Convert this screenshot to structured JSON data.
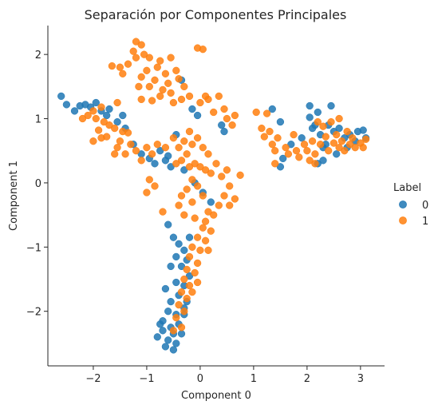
{
  "chart_data": {
    "type": "scatter",
    "title": "Separación por Componentes Principales",
    "xlabel": "Component 0",
    "ylabel": "Component 1",
    "xlim": [
      -2.85,
      3.45
    ],
    "ylim": [
      -2.85,
      2.45
    ],
    "x_ticks": [
      -2,
      -1,
      0,
      1,
      2,
      3
    ],
    "y_ticks": [
      -2,
      -1,
      0,
      1,
      2
    ],
    "x_tick_labels": [
      "−2",
      "−1",
      "0",
      "1",
      "2",
      "3"
    ],
    "y_tick_labels": [
      "−2",
      "−1",
      "0",
      "1",
      "2"
    ],
    "grid": false,
    "legend": {
      "title": "Label",
      "placement": "right"
    },
    "series": [
      {
        "name": "0",
        "color": "#1f77b4",
        "points": [
          [
            -2.6,
            1.35
          ],
          [
            -2.5,
            1.22
          ],
          [
            -2.35,
            1.12
          ],
          [
            -2.25,
            1.2
          ],
          [
            -2.15,
            1.22
          ],
          [
            -2.05,
            1.18
          ],
          [
            -1.95,
            1.25
          ],
          [
            -1.85,
            1.12
          ],
          [
            -1.75,
            1.05
          ],
          [
            -1.7,
            1.15
          ],
          [
            -1.55,
            0.95
          ],
          [
            -1.45,
            1.05
          ],
          [
            -1.4,
            0.85
          ],
          [
            -1.25,
            0.6
          ],
          [
            -1.1,
            0.45
          ],
          [
            -0.95,
            0.38
          ],
          [
            -0.85,
            0.3
          ],
          [
            -0.75,
            0.5
          ],
          [
            -0.6,
            0.42
          ],
          [
            -0.55,
            0.25
          ],
          [
            -0.65,
            0.35
          ],
          [
            -0.35,
            1.6
          ],
          [
            -0.15,
            1.15
          ],
          [
            -0.05,
            1.05
          ],
          [
            -0.45,
            0.75
          ],
          [
            0.4,
            0.9
          ],
          [
            0.45,
            0.8
          ],
          [
            -0.3,
            0.2
          ],
          [
            -0.1,
            0.0
          ],
          [
            0.05,
            -0.15
          ],
          [
            0.2,
            -0.3
          ],
          [
            -0.5,
            -0.85
          ],
          [
            -0.4,
            -0.95
          ],
          [
            -0.3,
            -1.05
          ],
          [
            -0.45,
            -1.15
          ],
          [
            -0.25,
            -1.2
          ],
          [
            -0.35,
            -1.3
          ],
          [
            -0.55,
            -1.3
          ],
          [
            -0.2,
            -1.45
          ],
          [
            -0.45,
            -1.55
          ],
          [
            -0.3,
            -1.6
          ],
          [
            -0.65,
            -1.65
          ],
          [
            -0.4,
            -1.75
          ],
          [
            -0.55,
            -1.85
          ],
          [
            -0.25,
            -1.85
          ],
          [
            -0.6,
            -2.0
          ],
          [
            -0.45,
            -2.05
          ],
          [
            -0.3,
            -2.05
          ],
          [
            -0.7,
            -2.15
          ],
          [
            -0.55,
            -2.25
          ],
          [
            -0.4,
            -2.2
          ],
          [
            -0.7,
            -2.3
          ],
          [
            -0.5,
            -2.35
          ],
          [
            -0.35,
            -2.35
          ],
          [
            -0.6,
            -2.45
          ],
          [
            -0.45,
            -2.5
          ],
          [
            -0.65,
            -2.55
          ],
          [
            -0.5,
            -2.6
          ],
          [
            -0.75,
            -2.2
          ],
          [
            -0.8,
            -2.4
          ],
          [
            -0.3,
            -1.95
          ],
          [
            -0.2,
            -0.85
          ],
          [
            -0.6,
            -0.65
          ],
          [
            1.35,
            1.15
          ],
          [
            1.5,
            0.95
          ],
          [
            1.5,
            0.25
          ],
          [
            1.55,
            0.38
          ],
          [
            1.7,
            0.6
          ],
          [
            1.9,
            0.7
          ],
          [
            2.05,
            1.02
          ],
          [
            2.1,
            0.85
          ],
          [
            2.15,
            0.9
          ],
          [
            2.2,
            1.1
          ],
          [
            2.25,
            0.75
          ],
          [
            2.3,
            0.55
          ],
          [
            2.35,
            0.6
          ],
          [
            2.45,
            1.2
          ],
          [
            2.5,
            0.8
          ],
          [
            2.55,
            0.45
          ],
          [
            2.6,
            0.85
          ],
          [
            2.7,
            0.7
          ],
          [
            2.75,
            0.55
          ],
          [
            2.8,
            0.75
          ],
          [
            2.9,
            0.65
          ],
          [
            2.95,
            0.8
          ],
          [
            3.05,
            0.82
          ],
          [
            3.1,
            0.7
          ],
          [
            2.05,
            1.2
          ],
          [
            2.2,
            0.3
          ],
          [
            2.3,
            0.35
          ],
          [
            2.4,
            0.9
          ]
        ]
      },
      {
        "name": "1",
        "color": "#ff7f0e",
        "points": [
          [
            -1.2,
            2.2
          ],
          [
            -1.1,
            2.15
          ],
          [
            -1.25,
            2.05
          ],
          [
            -1.05,
            2.0
          ],
          [
            -1.2,
            1.95
          ],
          [
            -0.95,
            1.95
          ],
          [
            -1.35,
            1.85
          ],
          [
            -0.75,
            1.9
          ],
          [
            -0.55,
            1.95
          ],
          [
            -0.8,
            1.8
          ],
          [
            -1.0,
            1.75
          ],
          [
            -0.65,
            1.7
          ],
          [
            -1.1,
            1.65
          ],
          [
            -1.65,
            1.82
          ],
          [
            -1.5,
            1.8
          ],
          [
            -1.45,
            1.7
          ],
          [
            -0.45,
            1.75
          ],
          [
            -0.4,
            1.62
          ],
          [
            -0.85,
            1.6
          ],
          [
            -0.6,
            1.55
          ],
          [
            -0.95,
            1.5
          ],
          [
            -1.15,
            1.5
          ],
          [
            -0.7,
            1.45
          ],
          [
            -0.55,
            1.4
          ],
          [
            -0.3,
            1.5
          ],
          [
            -0.75,
            1.35
          ],
          [
            -0.9,
            1.28
          ],
          [
            -1.1,
            1.3
          ],
          [
            -0.5,
            1.25
          ],
          [
            -0.35,
            1.3
          ],
          [
            -0.2,
            1.35
          ],
          [
            -0.05,
            2.1
          ],
          [
            0.05,
            2.08
          ],
          [
            0.0,
            1.25
          ],
          [
            0.1,
            1.35
          ],
          [
            0.15,
            1.3
          ],
          [
            0.25,
            1.1
          ],
          [
            0.35,
            1.35
          ],
          [
            0.45,
            1.15
          ],
          [
            0.5,
            1.0
          ],
          [
            0.6,
            0.9
          ],
          [
            0.65,
            1.05
          ],
          [
            -1.55,
            1.25
          ],
          [
            -1.85,
            1.18
          ],
          [
            -2.0,
            1.12
          ],
          [
            -2.1,
            1.05
          ],
          [
            -2.2,
            1.0
          ],
          [
            -1.95,
            1.0
          ],
          [
            -1.8,
            0.95
          ],
          [
            -1.7,
            0.9
          ],
          [
            -1.6,
            0.85
          ],
          [
            -1.9,
            0.82
          ],
          [
            -1.45,
            0.8
          ],
          [
            -1.35,
            0.78
          ],
          [
            -1.75,
            0.72
          ],
          [
            -1.5,
            0.65
          ],
          [
            -1.3,
            0.6
          ],
          [
            -1.55,
            0.55
          ],
          [
            -2.0,
            0.65
          ],
          [
            -1.85,
            0.7
          ],
          [
            -1.2,
            0.5
          ],
          [
            -1.0,
            0.55
          ],
          [
            -0.9,
            0.45
          ],
          [
            -1.4,
            0.45
          ],
          [
            -1.6,
            0.45
          ],
          [
            -1.1,
            0.35
          ],
          [
            -0.8,
            0.6
          ],
          [
            -0.65,
            0.55
          ],
          [
            -0.5,
            0.7
          ],
          [
            -0.4,
            0.55
          ],
          [
            -0.3,
            0.65
          ],
          [
            -0.2,
            0.8
          ],
          [
            -0.15,
            0.6
          ],
          [
            -0.05,
            0.7
          ],
          [
            0.05,
            0.55
          ],
          [
            0.15,
            0.45
          ],
          [
            -0.25,
            0.45
          ],
          [
            -0.35,
            0.35
          ],
          [
            -0.45,
            0.3
          ],
          [
            -0.2,
            0.25
          ],
          [
            -0.1,
            0.3
          ],
          [
            0.0,
            0.25
          ],
          [
            0.1,
            0.2
          ],
          [
            0.2,
            0.15
          ],
          [
            0.3,
            0.3
          ],
          [
            0.4,
            0.1
          ],
          [
            0.5,
            0.2
          ],
          [
            0.75,
            0.12
          ],
          [
            0.55,
            -0.05
          ],
          [
            0.45,
            -0.2
          ],
          [
            0.35,
            -0.35
          ],
          [
            0.55,
            -0.35
          ],
          [
            0.65,
            -0.25
          ],
          [
            0.25,
            -0.5
          ],
          [
            0.15,
            -0.45
          ],
          [
            -0.15,
            0.05
          ],
          [
            -0.25,
            -0.1
          ],
          [
            -0.35,
            -0.2
          ],
          [
            -0.05,
            -0.05
          ],
          [
            0.05,
            -0.2
          ],
          [
            -0.15,
            -0.3
          ],
          [
            -0.4,
            -0.35
          ],
          [
            -0.3,
            -0.5
          ],
          [
            -0.1,
            -0.55
          ],
          [
            0.1,
            -0.6
          ],
          [
            -0.7,
            -0.45
          ],
          [
            -0.85,
            -0.05
          ],
          [
            -0.95,
            0.05
          ],
          [
            -1.0,
            -0.15
          ],
          [
            0.05,
            -0.7
          ],
          [
            -0.05,
            -0.85
          ],
          [
            0.1,
            -0.9
          ],
          [
            -0.15,
            -1.0
          ],
          [
            0.0,
            -1.05
          ],
          [
            -0.2,
            -1.15
          ],
          [
            -0.05,
            -1.25
          ],
          [
            -0.25,
            -1.35
          ],
          [
            -0.1,
            -1.4
          ],
          [
            -0.3,
            -1.5
          ],
          [
            -0.2,
            -1.6
          ],
          [
            -0.35,
            -1.7
          ],
          [
            -0.25,
            -1.8
          ],
          [
            -0.4,
            -1.9
          ],
          [
            -0.3,
            -2.0
          ],
          [
            -0.45,
            -2.1
          ],
          [
            -0.35,
            -2.25
          ],
          [
            -0.5,
            -2.3
          ],
          [
            -0.15,
            -1.7
          ],
          [
            -0.05,
            -1.55
          ],
          [
            0.15,
            -1.05
          ],
          [
            0.2,
            -0.75
          ],
          [
            1.15,
            0.85
          ],
          [
            1.2,
            0.72
          ],
          [
            1.3,
            0.8
          ],
          [
            1.35,
            0.6
          ],
          [
            1.4,
            0.5
          ],
          [
            1.45,
            0.7
          ],
          [
            1.6,
            0.55
          ],
          [
            1.65,
            0.45
          ],
          [
            1.75,
            0.75
          ],
          [
            1.8,
            0.5
          ],
          [
            1.85,
            0.4
          ],
          [
            1.95,
            0.6
          ],
          [
            2.0,
            0.5
          ],
          [
            2.1,
            0.65
          ],
          [
            2.15,
            0.45
          ],
          [
            2.25,
            0.6
          ],
          [
            2.35,
            0.72
          ],
          [
            2.4,
            0.5
          ],
          [
            2.5,
            0.62
          ],
          [
            2.55,
            0.75
          ],
          [
            2.6,
            0.55
          ],
          [
            2.65,
            0.65
          ],
          [
            2.7,
            0.5
          ],
          [
            2.75,
            0.8
          ],
          [
            2.8,
            0.6
          ],
          [
            2.85,
            0.7
          ],
          [
            2.9,
            0.55
          ],
          [
            3.0,
            0.62
          ],
          [
            3.05,
            0.55
          ],
          [
            3.1,
            0.68
          ],
          [
            2.2,
            0.95
          ],
          [
            2.3,
            0.88
          ],
          [
            2.45,
            0.95
          ],
          [
            2.6,
            1.0
          ],
          [
            2.15,
            0.3
          ],
          [
            2.05,
            0.35
          ],
          [
            1.4,
            0.3
          ],
          [
            1.25,
            1.08
          ],
          [
            1.05,
            1.1
          ]
        ]
      }
    ]
  }
}
